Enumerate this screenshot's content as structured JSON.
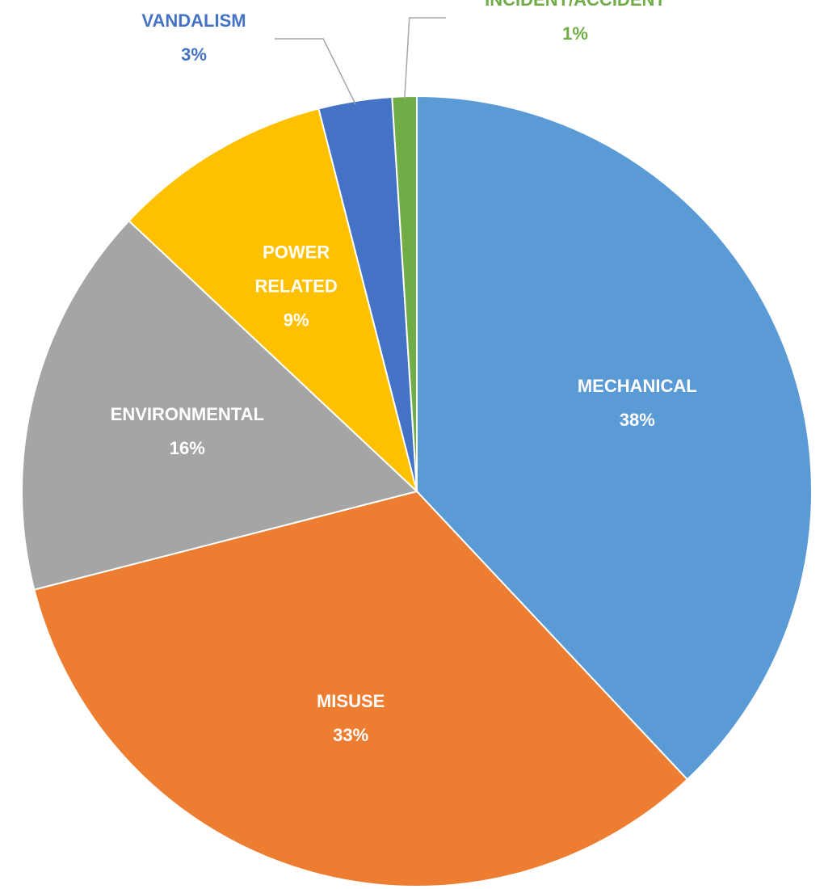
{
  "chart_data": {
    "type": "pie",
    "categories": [
      "MECHANICAL",
      "MISUSE",
      "ENVIRONMENTAL",
      "POWER RELATED",
      "VANDALISM",
      "INCIDENT/ACCIDENT"
    ],
    "values": [
      38,
      33,
      16,
      9,
      3,
      1
    ],
    "value_labels": [
      "38%",
      "33%",
      "16%",
      "9%",
      "3%",
      "1%"
    ],
    "colors": [
      "#5b9bd5",
      "#ed7d31",
      "#a5a5a5",
      "#ffc000",
      "#4472c4",
      "#70ad47"
    ]
  }
}
